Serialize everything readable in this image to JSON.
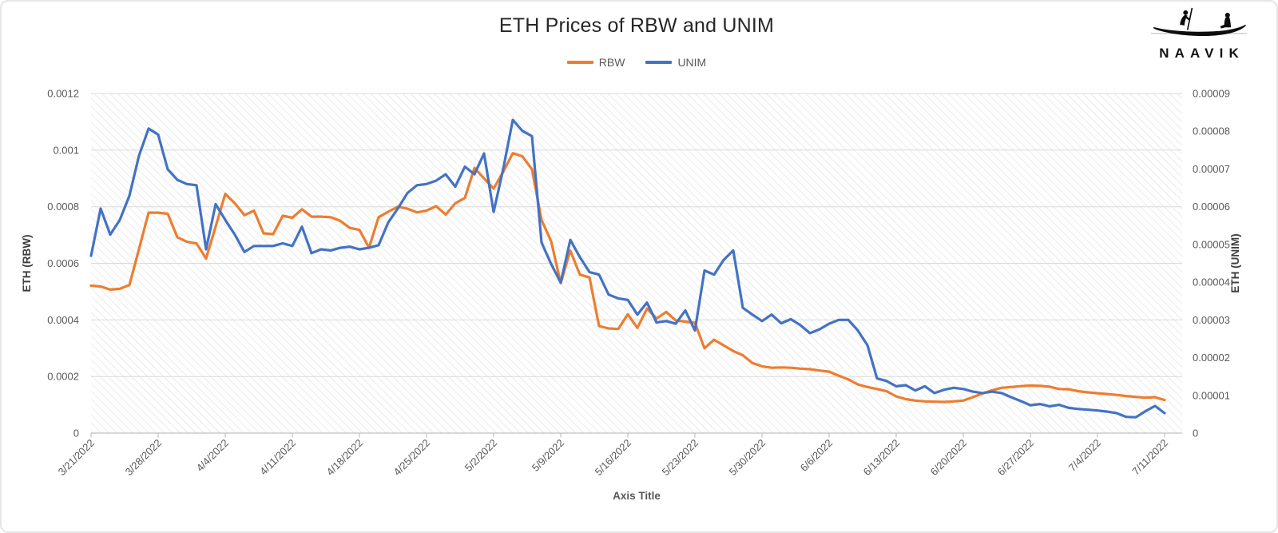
{
  "chart": {
    "title": "ETH Prices of RBW and UNIM",
    "x_axis_title": "Axis Title"
  },
  "legend": {
    "items": [
      {
        "label": "RBW",
        "color": "#ED7D31"
      },
      {
        "label": "UNIM",
        "color": "#4472C4"
      }
    ]
  },
  "logo": {
    "text": "NAAVIK",
    "icon": "boat-icon"
  },
  "colors": {
    "rbw": "#ED7D31",
    "unim": "#4472C4",
    "gridline": "#D9D9D9",
    "axis_line": "#BFBFBF",
    "tick_text": "#595959",
    "axis_title_text": "#404040",
    "title_text": "#262626",
    "hatch": "#ECECEC"
  },
  "chart_data": {
    "type": "line",
    "title": "ETH Prices of RBW and UNIM",
    "xlabel": "Axis Title",
    "grid": "horizontal",
    "legend_position": "top",
    "plot_background": "light diagonal hatch pattern",
    "left_axis": {
      "title": "ETH (RBW)",
      "min": 0,
      "max": 0.0012,
      "ticks": [
        {
          "value": 0,
          "label": "0"
        },
        {
          "value": 0.0002,
          "label": "0.0002"
        },
        {
          "value": 0.0004,
          "label": "0.0004"
        },
        {
          "value": 0.0006,
          "label": "0.0006"
        },
        {
          "value": 0.0008,
          "label": "0.0008"
        },
        {
          "value": 0.001,
          "label": "0.001"
        },
        {
          "value": 0.0012,
          "label": "0.0012"
        }
      ]
    },
    "right_axis": {
      "title": "ETH (UNIM)",
      "min": 0,
      "max": 9e-05,
      "ticks": [
        {
          "value": 0,
          "label": "0"
        },
        {
          "value": 1e-05,
          "label": "0.00001"
        },
        {
          "value": 2e-05,
          "label": "0.00002"
        },
        {
          "value": 3e-05,
          "label": "0.00003"
        },
        {
          "value": 4e-05,
          "label": "0.00004"
        },
        {
          "value": 5e-05,
          "label": "0.00005"
        },
        {
          "value": 6e-05,
          "label": "0.00006"
        },
        {
          "value": 7e-05,
          "label": "0.00007"
        },
        {
          "value": 8e-05,
          "label": "0.00008"
        },
        {
          "value": 9e-05,
          "label": "0.00009"
        }
      ]
    },
    "x_ticks": [
      {
        "index": 0,
        "label": "3/21/2022"
      },
      {
        "index": 7,
        "label": "3/28/2022"
      },
      {
        "index": 14,
        "label": "4/4/2022"
      },
      {
        "index": 21,
        "label": "4/11/2022"
      },
      {
        "index": 28,
        "label": "4/18/2022"
      },
      {
        "index": 35,
        "label": "4/25/2022"
      },
      {
        "index": 42,
        "label": "5/2/2022"
      },
      {
        "index": 49,
        "label": "5/9/2022"
      },
      {
        "index": 56,
        "label": "5/16/2022"
      },
      {
        "index": 63,
        "label": "5/23/2022"
      },
      {
        "index": 70,
        "label": "5/30/2022"
      },
      {
        "index": 77,
        "label": "6/6/2022"
      },
      {
        "index": 84,
        "label": "6/13/2022"
      },
      {
        "index": 91,
        "label": "6/20/2022"
      },
      {
        "index": 98,
        "label": "6/27/2022"
      },
      {
        "index": 105,
        "label": "7/4/2022"
      },
      {
        "index": 112,
        "label": "7/11/2022"
      }
    ],
    "dates": [
      "3/21/2022",
      "3/22/2022",
      "3/23/2022",
      "3/24/2022",
      "3/25/2022",
      "3/26/2022",
      "3/27/2022",
      "3/28/2022",
      "3/29/2022",
      "3/30/2022",
      "3/31/2022",
      "4/1/2022",
      "4/2/2022",
      "4/3/2022",
      "4/4/2022",
      "4/5/2022",
      "4/6/2022",
      "4/7/2022",
      "4/8/2022",
      "4/9/2022",
      "4/10/2022",
      "4/11/2022",
      "4/12/2022",
      "4/13/2022",
      "4/14/2022",
      "4/15/2022",
      "4/16/2022",
      "4/17/2022",
      "4/18/2022",
      "4/19/2022",
      "4/20/2022",
      "4/21/2022",
      "4/22/2022",
      "4/23/2022",
      "4/24/2022",
      "4/25/2022",
      "4/26/2022",
      "4/27/2022",
      "4/28/2022",
      "4/29/2022",
      "4/30/2022",
      "5/1/2022",
      "5/2/2022",
      "5/3/2022",
      "5/4/2022",
      "5/5/2022",
      "5/6/2022",
      "5/7/2022",
      "5/8/2022",
      "5/9/2022",
      "5/10/2022",
      "5/11/2022",
      "5/12/2022",
      "5/13/2022",
      "5/14/2022",
      "5/15/2022",
      "5/16/2022",
      "5/17/2022",
      "5/18/2022",
      "5/19/2022",
      "5/20/2022",
      "5/21/2022",
      "5/22/2022",
      "5/23/2022",
      "5/24/2022",
      "5/25/2022",
      "5/26/2022",
      "5/27/2022",
      "5/28/2022",
      "5/29/2022",
      "5/30/2022",
      "5/31/2022",
      "6/1/2022",
      "6/2/2022",
      "6/3/2022",
      "6/4/2022",
      "6/5/2022",
      "6/6/2022",
      "6/7/2022",
      "6/8/2022",
      "6/9/2022",
      "6/10/2022",
      "6/11/2022",
      "6/12/2022",
      "6/13/2022",
      "6/14/2022",
      "6/15/2022",
      "6/16/2022",
      "6/17/2022",
      "6/18/2022",
      "6/19/2022",
      "6/20/2022",
      "6/21/2022",
      "6/22/2022",
      "6/23/2022",
      "6/24/2022",
      "6/25/2022",
      "6/26/2022",
      "6/27/2022",
      "6/28/2022",
      "6/29/2022",
      "6/30/2022",
      "7/1/2022",
      "7/2/2022",
      "7/3/2022",
      "7/4/2022",
      "7/5/2022",
      "7/6/2022",
      "7/7/2022",
      "7/8/2022",
      "7/9/2022",
      "7/10/2022",
      "7/11/2022"
    ],
    "series": [
      {
        "name": "RBW",
        "axis": "left",
        "color": "#ED7D31",
        "values": [
          0.000521,
          0.000518,
          0.000507,
          0.00051,
          0.000523,
          0.00065,
          0.000779,
          0.000779,
          0.000775,
          0.000692,
          0.000676,
          0.00067,
          0.000617,
          0.00073,
          0.000845,
          0.000812,
          0.00077,
          0.000786,
          0.000706,
          0.000703,
          0.000768,
          0.000761,
          0.000791,
          0.000765,
          0.000765,
          0.000763,
          0.00075,
          0.000725,
          0.000718,
          0.000655,
          0.000763,
          0.000782,
          0.0008,
          0.000793,
          0.00078,
          0.000786,
          0.000802,
          0.000772,
          0.000812,
          0.000831,
          0.000937,
          0.0009,
          0.000864,
          0.000923,
          0.000989,
          0.000978,
          0.000932,
          0.000753,
          0.000678,
          0.00053,
          0.000645,
          0.00056,
          0.00055,
          0.000378,
          0.00037,
          0.000368,
          0.00042,
          0.000372,
          0.00044,
          0.000405,
          0.000428,
          0.000398,
          0.000394,
          0.00039,
          0.0003,
          0.00033,
          0.00031,
          0.00029,
          0.000275,
          0.000248,
          0.000236,
          0.000231,
          0.000232,
          0.000231,
          0.000228,
          0.000226,
          0.000221,
          0.000217,
          0.000203,
          0.00019,
          0.000172,
          0.000163,
          0.000156,
          0.000148,
          0.00013,
          0.00012,
          0.000115,
          0.000112,
          0.000111,
          0.00011,
          0.000112,
          0.000115,
          0.000127,
          0.00014,
          0.000151,
          0.00016,
          0.000163,
          0.000166,
          0.000168,
          0.000167,
          0.000164,
          0.000156,
          0.000155,
          0.000148,
          0.000144,
          0.000141,
          0.000138,
          0.000135,
          0.000131,
          0.000128,
          0.000125,
          0.000127,
          0.000117
        ]
      },
      {
        "name": "UNIM",
        "axis": "right",
        "color": "#4472C4",
        "values": [
          4.7e-05,
          5.95e-05,
          5.26e-05,
          5.65e-05,
          6.29e-05,
          7.35e-05,
          8.07e-05,
          7.91e-05,
          6.99e-05,
          6.71e-05,
          6.6e-05,
          6.57e-05,
          4.87e-05,
          6.07e-05,
          5.65e-05,
          5.26e-05,
          4.8e-05,
          4.96e-05,
          4.96e-05,
          4.96e-05,
          5.03e-05,
          4.96e-05,
          5.47e-05,
          4.77e-05,
          4.87e-05,
          4.84e-05,
          4.91e-05,
          4.94e-05,
          4.87e-05,
          4.91e-05,
          4.98e-05,
          5.58e-05,
          5.95e-05,
          6.36e-05,
          6.57e-05,
          6.6e-05,
          6.69e-05,
          6.86e-05,
          6.53e-05,
          7.06e-05,
          6.86e-05,
          7.41e-05,
          5.86e-05,
          7e-05,
          8.3e-05,
          8.01e-05,
          7.87e-05,
          5.05e-05,
          4.48e-05,
          3.99e-05,
          5.12e-05,
          4.66e-05,
          4.27e-05,
          4.2e-05,
          3.67e-05,
          3.57e-05,
          3.53e-05,
          3.14e-05,
          3.46e-05,
          2.93e-05,
          2.97e-05,
          2.9e-05,
          3.25e-05,
          2.72e-05,
          4.31e-05,
          4.2e-05,
          4.59e-05,
          4.84e-05,
          3.32e-05,
          3.14e-05,
          2.97e-05,
          3.14e-05,
          2.91e-05,
          3.02e-05,
          2.86e-05,
          2.65e-05,
          2.75e-05,
          2.9e-05,
          3e-05,
          3e-05,
          2.72e-05,
          2.33e-05,
          1.45e-05,
          1.38e-05,
          1.24e-05,
          1.27e-05,
          1.13e-05,
          1.24e-05,
          1.06e-05,
          1.15e-05,
          1.2e-05,
          1.17e-05,
          1.1e-05,
          1.06e-05,
          1.1e-05,
          1.06e-05,
          9.5e-06,
          8.5e-06,
          7.4e-06,
          7.7e-06,
          7.1e-06,
          7.5e-06,
          6.7e-06,
          6.4e-06,
          6.2e-06,
          6e-06,
          5.7e-06,
          5.3e-06,
          4.3e-06,
          4.2e-06,
          5.8e-06,
          7.2e-06,
          5.3e-06
        ]
      }
    ]
  }
}
